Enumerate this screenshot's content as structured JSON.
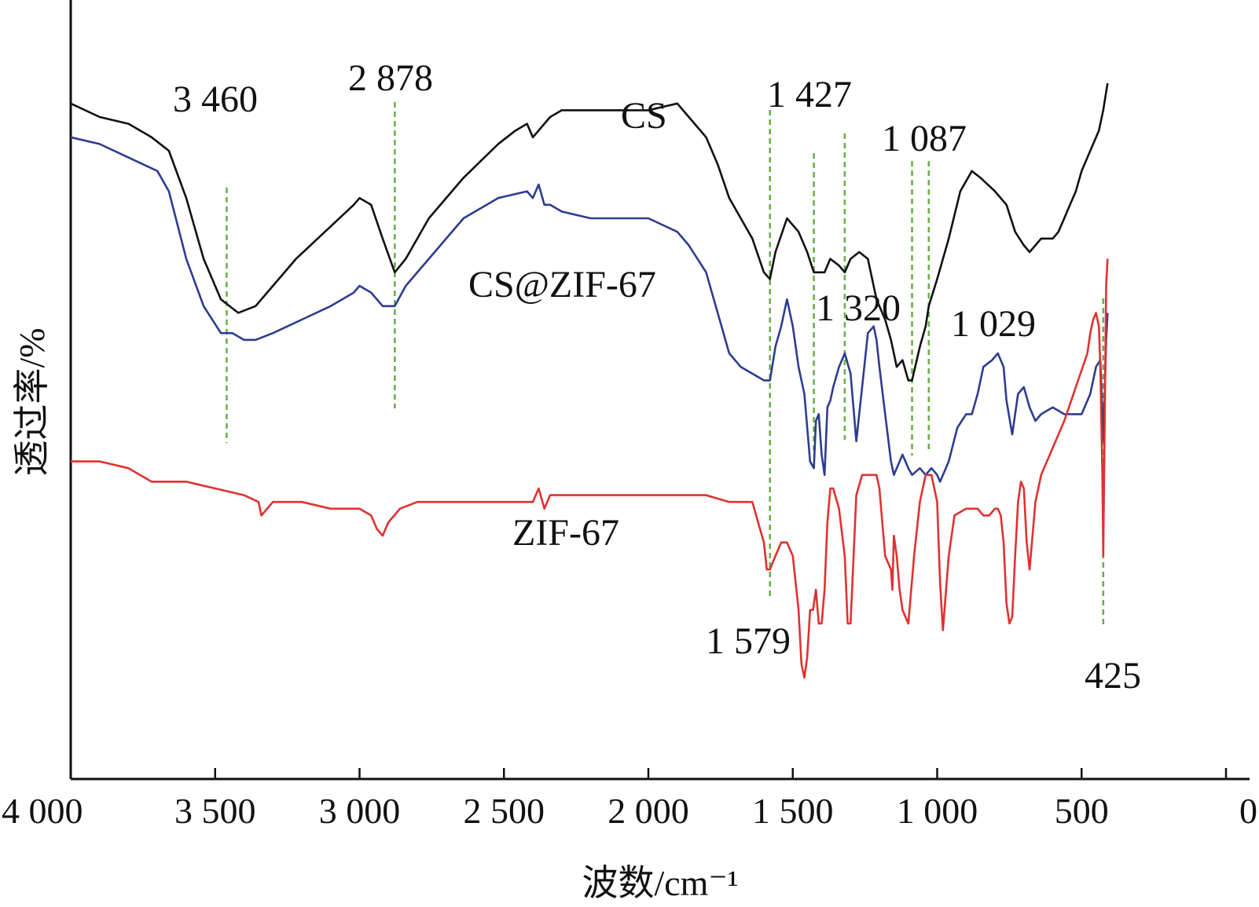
{
  "chart_data": {
    "type": "line",
    "xlabel": "波数/cm⁻¹",
    "ylabel": "透过率/%",
    "xlim": [
      4000,
      0
    ],
    "x_ticks": [
      {
        "value": 4000,
        "label": "4 000"
      },
      {
        "value": 3500,
        "label": "3 500"
      },
      {
        "value": 3000,
        "label": "3 000"
      },
      {
        "value": 2500,
        "label": "2 500"
      },
      {
        "value": 2000,
        "label": "2 000"
      },
      {
        "value": 1500,
        "label": "1 500"
      },
      {
        "value": 1000,
        "label": "1 000"
      },
      {
        "value": 500,
        "label": "500"
      },
      {
        "value": 0,
        "label": "0"
      }
    ],
    "ylim": [
      0,
      100
    ],
    "grid": false,
    "series": [
      {
        "name": "CS",
        "color": "#111111",
        "x": [
          4000,
          3900,
          3800,
          3720,
          3660,
          3600,
          3540,
          3480,
          3420,
          3360,
          3300,
          3220,
          3120,
          3020,
          3000,
          2960,
          2920,
          2878,
          2840,
          2760,
          2640,
          2520,
          2460,
          2420,
          2400,
          2380,
          2340,
          2300,
          2200,
          2100,
          2000,
          1900,
          1860,
          1800,
          1760,
          1720,
          1680,
          1640,
          1600,
          1579,
          1560,
          1520,
          1480,
          1450,
          1427,
          1410,
          1390,
          1370,
          1340,
          1320,
          1300,
          1270,
          1240,
          1210,
          1180,
          1160,
          1140,
          1120,
          1100,
          1087,
          1060,
          1040,
          1029,
          1000,
          960,
          920,
          880,
          850,
          800,
          760,
          730,
          700,
          680,
          660,
          640,
          620,
          600,
          580,
          560,
          540,
          520,
          500,
          480,
          460,
          440,
          425,
          410
        ],
        "y": [
          87,
          85,
          84,
          82,
          80,
          73,
          64,
          58,
          56,
          57,
          60,
          64,
          68,
          72,
          73,
          72,
          67,
          62,
          64,
          70,
          76,
          81,
          83,
          84,
          82,
          83,
          85,
          86,
          86,
          86,
          86,
          87,
          85,
          82,
          78,
          73,
          70,
          67,
          62,
          61,
          65,
          70,
          68,
          65,
          62,
          62,
          62,
          64,
          63,
          62,
          64,
          65,
          64,
          58,
          55,
          52,
          48,
          49,
          46,
          46,
          51,
          54,
          57,
          61,
          67,
          74,
          77,
          76,
          74,
          72,
          68,
          66,
          65,
          66,
          67,
          67,
          67,
          68,
          70,
          72,
          74,
          77,
          79,
          81,
          83,
          86,
          90
        ]
      },
      {
        "name": "CS@ZIF-67",
        "color": "#2c3d8f",
        "x": [
          4000,
          3900,
          3800,
          3700,
          3660,
          3600,
          3540,
          3480,
          3440,
          3400,
          3360,
          3300,
          3200,
          3100,
          3020,
          3000,
          2960,
          2920,
          2878,
          2840,
          2760,
          2640,
          2520,
          2420,
          2400,
          2380,
          2360,
          2340,
          2300,
          2200,
          2100,
          2000,
          1900,
          1860,
          1800,
          1760,
          1720,
          1680,
          1640,
          1600,
          1579,
          1560,
          1540,
          1520,
          1500,
          1480,
          1460,
          1440,
          1427,
          1420,
          1410,
          1400,
          1390,
          1380,
          1370,
          1360,
          1340,
          1320,
          1300,
          1280,
          1260,
          1240,
          1220,
          1210,
          1200,
          1180,
          1160,
          1150,
          1140,
          1120,
          1100,
          1087,
          1060,
          1040,
          1020,
          1000,
          990,
          960,
          930,
          900,
          880,
          860,
          840,
          810,
          790,
          780,
          770,
          760,
          740,
          720,
          700,
          680,
          660,
          640,
          600,
          560,
          500,
          470,
          450,
          435,
          428,
          425,
          420,
          415,
          410
        ],
        "y": [
          82,
          81,
          79,
          77,
          74,
          64,
          57,
          53,
          53,
          52,
          52,
          53,
          55,
          57,
          59,
          60,
          59,
          57,
          57,
          60,
          64,
          70,
          73,
          74,
          73,
          75,
          72,
          72,
          71,
          70,
          70,
          70,
          68,
          66,
          62,
          56,
          50,
          48,
          47,
          46,
          46,
          51,
          54,
          58,
          54,
          48,
          44,
          34,
          33,
          40,
          41,
          35,
          32,
          42,
          43,
          45,
          48,
          50,
          47,
          37,
          45,
          53,
          54,
          52,
          48,
          41,
          34,
          32,
          33,
          35,
          33,
          32,
          33,
          32,
          33,
          32,
          31,
          34,
          39,
          41,
          41,
          44,
          48,
          49,
          50,
          49,
          48,
          43,
          38,
          44,
          45,
          42,
          40,
          41,
          42,
          41,
          41,
          44,
          48,
          49,
          41,
          37,
          44,
          52,
          56
        ]
      },
      {
        "name": "ZIF-67",
        "color": "#e03131",
        "x": [
          4000,
          3900,
          3800,
          3720,
          3700,
          3600,
          3500,
          3400,
          3350,
          3340,
          3320,
          3300,
          3200,
          3100,
          3000,
          2960,
          2940,
          2920,
          2900,
          2860,
          2800,
          2700,
          2600,
          2500,
          2400,
          2380,
          2360,
          2340,
          2300,
          2200,
          2100,
          2000,
          1900,
          1800,
          1720,
          1660,
          1640,
          1620,
          1600,
          1590,
          1579,
          1560,
          1540,
          1520,
          1500,
          1480,
          1470,
          1460,
          1450,
          1440,
          1430,
          1420,
          1410,
          1400,
          1390,
          1380,
          1370,
          1360,
          1340,
          1320,
          1310,
          1300,
          1280,
          1260,
          1240,
          1220,
          1210,
          1200,
          1180,
          1160,
          1155,
          1150,
          1140,
          1130,
          1120,
          1100,
          1080,
          1060,
          1040,
          1020,
          1000,
          995,
          990,
          980,
          960,
          940,
          900,
          860,
          840,
          820,
          800,
          790,
          780,
          770,
          760,
          750,
          740,
          730,
          720,
          710,
          700,
          690,
          680,
          660,
          640,
          600,
          560,
          520,
          480,
          470,
          460,
          450,
          440,
          435,
          428,
          425,
          420,
          415,
          410
        ],
        "y": [
          34,
          34,
          33,
          31,
          31,
          31,
          30,
          29,
          28,
          26,
          27,
          28,
          28,
          27,
          27,
          26,
          24,
          23,
          25,
          27,
          28,
          28,
          28,
          28,
          28,
          30,
          27,
          29,
          29,
          29,
          29,
          29,
          29,
          29,
          28,
          28,
          28,
          25,
          22,
          18,
          18,
          20,
          22,
          22,
          20,
          12,
          4,
          2,
          5,
          12,
          12,
          15,
          10,
          10,
          15,
          25,
          30,
          30,
          27,
          20,
          10,
          10,
          29,
          32,
          32,
          32,
          32,
          30,
          20,
          18,
          15,
          23,
          20,
          15,
          12,
          10,
          20,
          28,
          32,
          32,
          28,
          22,
          16,
          9,
          20,
          26,
          27,
          27,
          26,
          26,
          27,
          27,
          26,
          22,
          13,
          10,
          11,
          20,
          28,
          31,
          30,
          22,
          18,
          28,
          32,
          36,
          40,
          45,
          50,
          53,
          55,
          56,
          54,
          48,
          32,
          20,
          40,
          60,
          64
        ]
      }
    ],
    "annotations": [
      {
        "label": "3 460",
        "x": 3460
      },
      {
        "label": "2 878",
        "x": 2878
      },
      {
        "label": "1 427",
        "x": 1427
      },
      {
        "label": "1 087",
        "x": 1087
      },
      {
        "label": "1 320",
        "x": 1320
      },
      {
        "label": "1 029",
        "x": 1029
      },
      {
        "label": "1 579",
        "x": 1579
      },
      {
        "label": "425",
        "x": 425
      }
    ],
    "reference_line_color": "#6ab04c"
  }
}
